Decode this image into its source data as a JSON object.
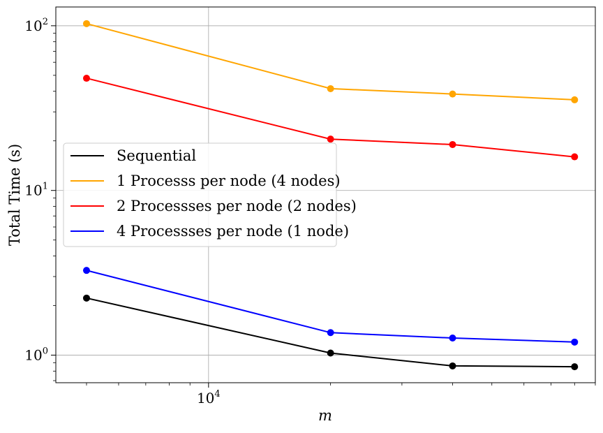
{
  "chart_data": {
    "type": "line",
    "title": "",
    "xlabel": "m",
    "ylabel": "Total Time (s)",
    "xscale": "log",
    "yscale": "log",
    "xlim": [
      4200,
      90000
    ],
    "ylim": [
      0.68,
      130
    ],
    "grid": true,
    "legend_position": "center-left",
    "x": [
      5000,
      20000,
      40000,
      80000
    ],
    "x_ticks": [
      {
        "value": 10000,
        "mantissa": "10",
        "exponent": "4"
      }
    ],
    "y_ticks": [
      {
        "value": 1,
        "mantissa": "10",
        "exponent": "0"
      },
      {
        "value": 10,
        "mantissa": "10",
        "exponent": "1"
      },
      {
        "value": 100,
        "mantissa": "10",
        "exponent": "2"
      }
    ],
    "series": [
      {
        "name": "Sequential",
        "color": "#000000",
        "values": [
          2.22,
          1.03,
          0.86,
          0.85
        ]
      },
      {
        "name": "1 Processs per node (4 nodes)",
        "color": "#ffa500",
        "values": [
          103,
          41.5,
          38.5,
          35.5
        ]
      },
      {
        "name": "2 Processses per node (2 nodes)",
        "color": "#ff0000",
        "values": [
          48,
          20.5,
          19.0,
          16.0
        ]
      },
      {
        "name": "4 Processses per node (1 node)",
        "color": "#0000ff",
        "values": [
          3.27,
          1.37,
          1.27,
          1.2
        ]
      }
    ]
  }
}
